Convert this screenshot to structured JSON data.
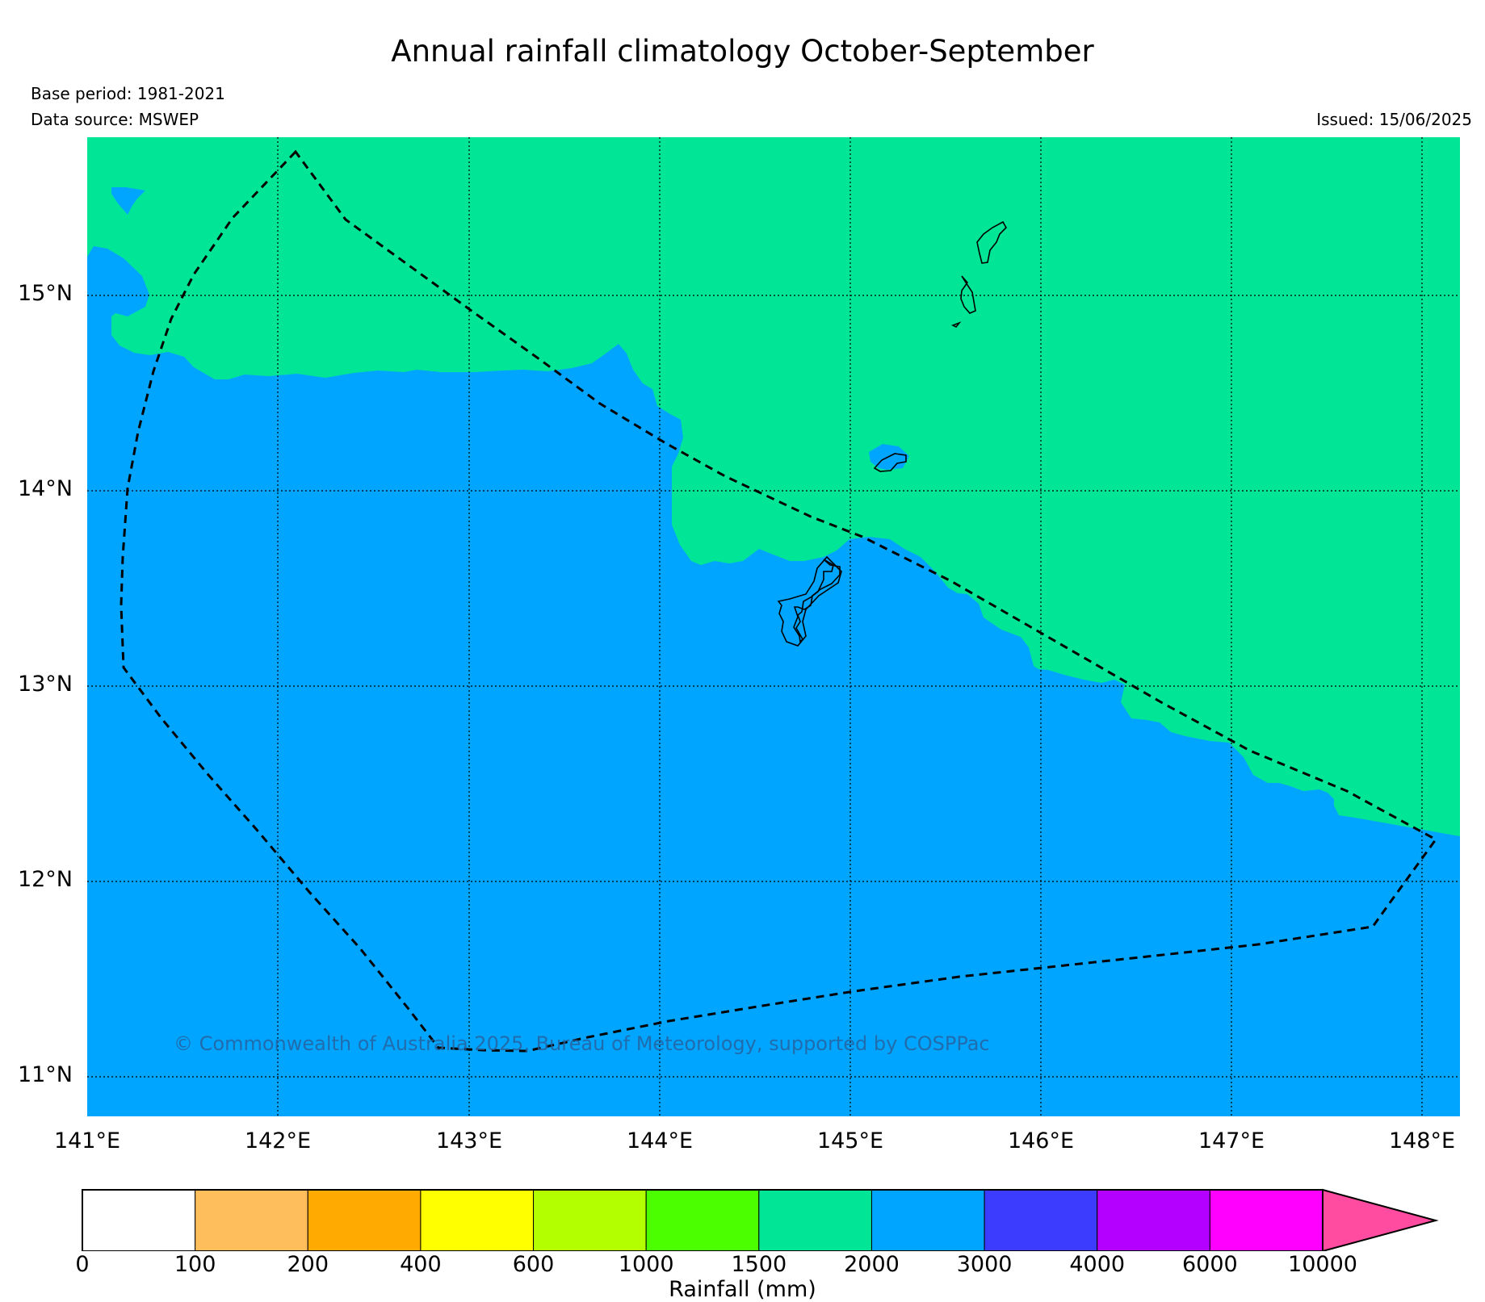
{
  "title": "Annual rainfall climatology October-September",
  "base_period": "Base period: 1981-2021",
  "data_source": "Data source: MSWEP",
  "issued": "Issued: 15/06/2025",
  "credit": "© Commonwealth of Australia 2025, Bureau of Meteorology, supported by COSPPac",
  "lat_labels": [
    "15°N",
    "14°N",
    "13°N",
    "12°N",
    "11°N"
  ],
  "lon_labels": [
    "141°E",
    "142°E",
    "143°E",
    "144°E",
    "145°E",
    "146°E",
    "147°E",
    "148°E"
  ],
  "colorbar": {
    "title": "Rainfall (mm)",
    "ticks": [
      "0",
      "100",
      "200",
      "400",
      "600",
      "1000",
      "1500",
      "2000",
      "3000",
      "4000",
      "6000",
      "10000"
    ],
    "colors": [
      "#ffffff",
      "#ffbe5c",
      "#ffaa00",
      "#ffff00",
      "#b3ff00",
      "#4cff00",
      "#00e696",
      "#00a5ff",
      "#3c3cff",
      "#b400ff",
      "#ff00ff"
    ],
    "extend_color": "#ff4ba0"
  },
  "map": {
    "region_colors": {
      "high_band": "#00e696",
      "very_high_band": "#00a5ff"
    },
    "extent": {
      "lon_min": 141.0,
      "lon_max": 148.2,
      "lat_min": 10.8,
      "lat_max": 15.8
    }
  }
}
